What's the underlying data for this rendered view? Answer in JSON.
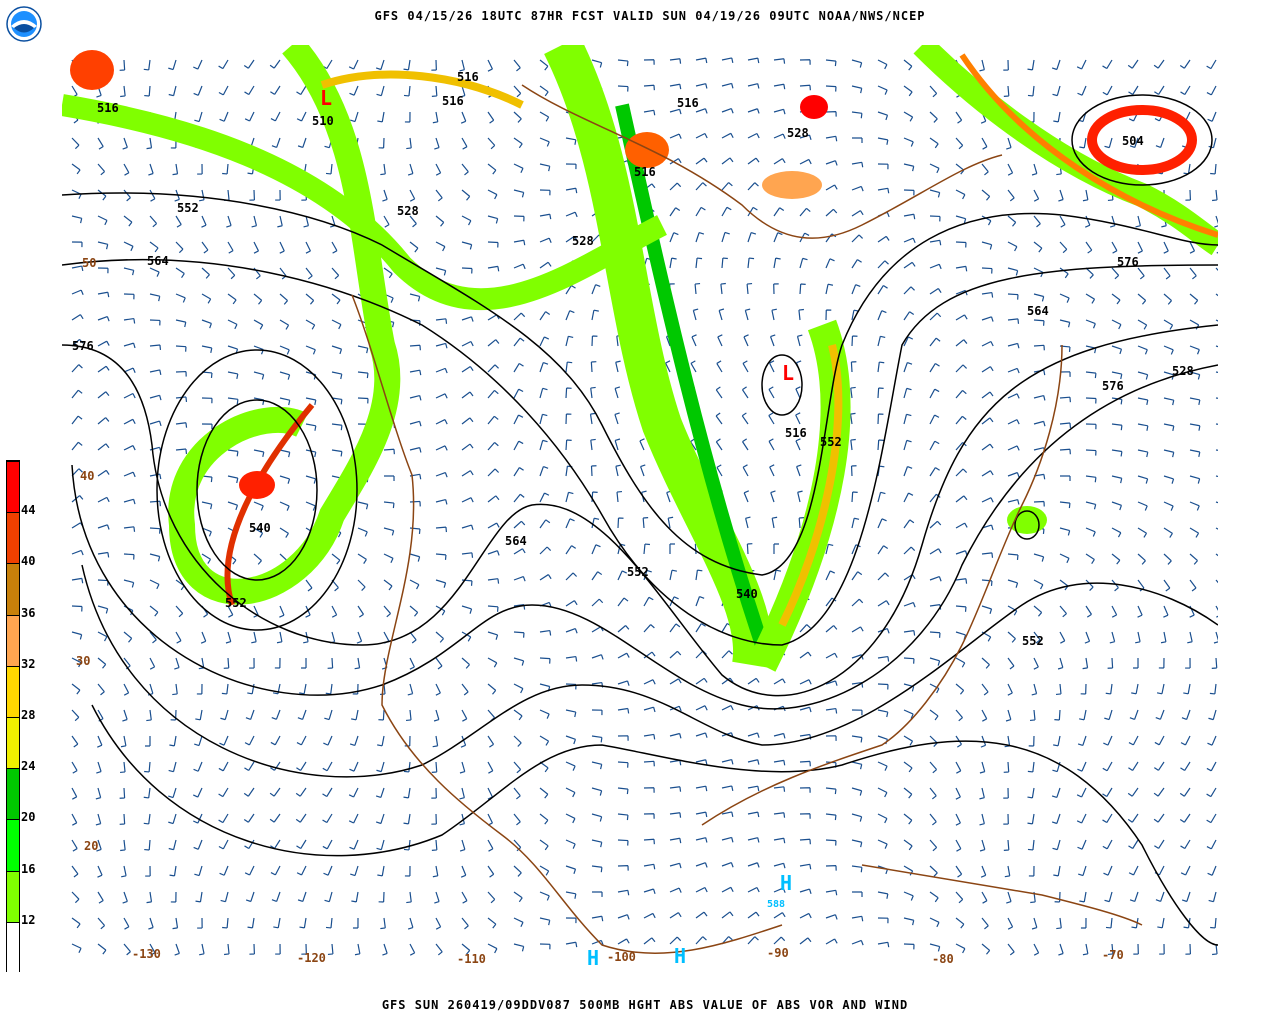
{
  "header": {
    "title": "GFS 04/15/26 18UTC 87HR FCST VALID SUN 04/19/26 09UTC NOAA/NWS/NCEP"
  },
  "footer": {
    "title": "GFS SUN 260419/09DDV087 500MB HGHT ABS VALUE OF ABS VOR AND WIND"
  },
  "logo": {
    "text": "NOAA"
  },
  "colorbar": {
    "ticks": [
      "12",
      "16",
      "20",
      "24",
      "28",
      "32",
      "36",
      "40",
      "44"
    ],
    "colors": [
      "#ffffff",
      "#80ff00",
      "#00ff00",
      "#00c800",
      "#f0f000",
      "#ffd700",
      "#ffa550",
      "#c8800a",
      "#f04000",
      "#ff0000"
    ]
  },
  "map": {
    "contour_color": "#000000",
    "coastline_color": "#8b4513",
    "barb_color": "#1a4f8f",
    "contour_labels": [
      "516",
      "516",
      "516",
      "516",
      "510",
      "528",
      "552",
      "564",
      "576",
      "540",
      "552",
      "564",
      "552",
      "576",
      "528",
      "504",
      "516",
      "528",
      "516",
      "552",
      "564",
      "576",
      "528",
      "540",
      "552"
    ],
    "lon_labels": [
      "-130",
      "-120",
      "-110",
      "-100",
      "-90",
      "-80",
      "-70"
    ],
    "lat_labels": [
      "50",
      "40",
      "30",
      "20"
    ],
    "pressure_labels": [
      "H",
      "H",
      "H",
      "L",
      "L"
    ],
    "high_value": "588"
  }
}
